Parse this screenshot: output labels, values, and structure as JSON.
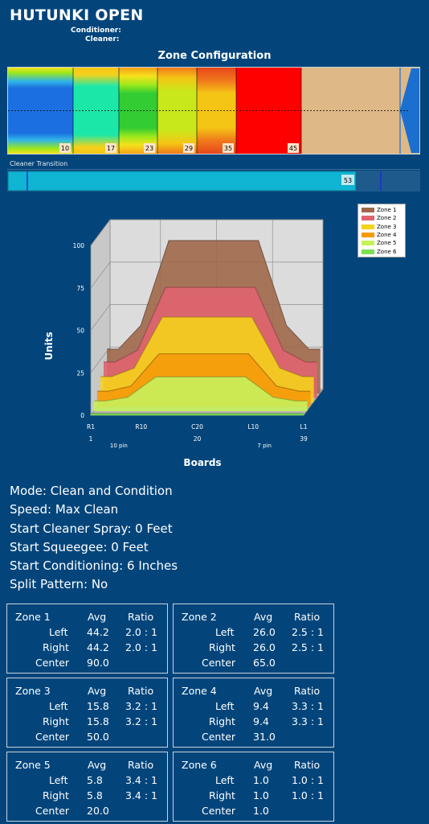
{
  "header": {
    "title": "HUTUNKI OPEN",
    "conditioner_label": "Conditioner:",
    "cleaner_label": "Cleaner:"
  },
  "zone_config": {
    "title": "Zone Configuration",
    "zone_ends": [
      10,
      17,
      23,
      29,
      35,
      45
    ],
    "colors": {
      "z1": "#1b6fe0",
      "z2": "#1be8a8",
      "z3": "#33cc33",
      "z4": "#c8e81b",
      "z5": "#f5c516",
      "z6": "#ff0000",
      "dry": "#deb887",
      "pin_arrow": "#1b6fcf"
    }
  },
  "cleaner_transition": {
    "label": "Cleaner Transition",
    "value": "53",
    "color": "#0fb5d2"
  },
  "chart_data": {
    "type": "area",
    "ylabel": "Units",
    "xlabel": "Boards",
    "ylim": [
      0,
      100
    ],
    "yticks": [
      "0",
      "25",
      "50",
      "75",
      "100"
    ],
    "xticks": [
      "R1",
      "R10",
      "C20",
      "L10",
      "L1"
    ],
    "board_numbers": [
      "1",
      "20",
      "39"
    ],
    "pin_labels": [
      "10 pin",
      "7 pin"
    ],
    "boards": [
      1,
      3,
      7,
      12,
      20,
      28,
      33,
      37,
      39
    ],
    "series": [
      {
        "name": "Zone 1",
        "color": "#a0684a",
        "values": [
          26,
          26,
          40,
          90,
          90,
          90,
          40,
          26,
          26
        ]
      },
      {
        "name": "Zone 2",
        "color": "#e0646e",
        "values": [
          21,
          21,
          28,
          65,
          65,
          65,
          28,
          21,
          21
        ]
      },
      {
        "name": "Zone 3",
        "color": "#f5d21c",
        "values": [
          15,
          15,
          20,
          50,
          50,
          50,
          20,
          15,
          15
        ]
      },
      {
        "name": "Zone 4",
        "color": "#f59a0a",
        "values": [
          9,
          9,
          12,
          31,
          31,
          31,
          12,
          9,
          9
        ]
      },
      {
        "name": "Zone 5",
        "color": "#c8f05a",
        "values": [
          5.8,
          5.8,
          8,
          20,
          20,
          20,
          8,
          5.8,
          5.8
        ]
      },
      {
        "name": "Zone 6",
        "color": "#7ee052",
        "values": [
          1,
          1,
          1,
          1,
          1,
          1,
          1,
          1,
          1
        ]
      }
    ]
  },
  "info": {
    "mode": "Mode: Clean and Condition",
    "speed": "Speed: Max Clean",
    "cleaner_spray": "Start Cleaner Spray: 0 Feet",
    "squeegee": "Start Squeegee: 0 Feet",
    "conditioning": "Start Conditioning: 6 Inches",
    "split": "Split Pattern: No"
  },
  "zone_tables": [
    {
      "zone": "Zone 1",
      "avg_h": "Avg",
      "ratio_h": "Ratio",
      "left_l": "Left",
      "left_avg": "44.2",
      "left_ratio": "2.0 : 1",
      "right_l": "Right",
      "right_avg": "44.2",
      "right_ratio": "2.0 : 1",
      "center_l": "Center",
      "center_avg": "90.0"
    },
    {
      "zone": "Zone 2",
      "avg_h": "Avg",
      "ratio_h": "Ratio",
      "left_l": "Left",
      "left_avg": "26.0",
      "left_ratio": "2.5 : 1",
      "right_l": "Right",
      "right_avg": "26.0",
      "right_ratio": "2.5 : 1",
      "center_l": "Center",
      "center_avg": "65.0"
    },
    {
      "zone": "Zone 3",
      "avg_h": "Avg",
      "ratio_h": "Ratio",
      "left_l": "Left",
      "left_avg": "15.8",
      "left_ratio": "3.2 : 1",
      "right_l": "Right",
      "right_avg": "15.8",
      "right_ratio": "3.2 : 1",
      "center_l": "Center",
      "center_avg": "50.0"
    },
    {
      "zone": "Zone 4",
      "avg_h": "Avg",
      "ratio_h": "Ratio",
      "left_l": "Left",
      "left_avg": "9.4",
      "left_ratio": "3.3 : 1",
      "right_l": "Right",
      "right_avg": "9.4",
      "right_ratio": "3.3 : 1",
      "center_l": "Center",
      "center_avg": "31.0"
    },
    {
      "zone": "Zone 5",
      "avg_h": "Avg",
      "ratio_h": "Ratio",
      "left_l": "Left",
      "left_avg": "5.8",
      "left_ratio": "3.4 : 1",
      "right_l": "Right",
      "right_avg": "5.8",
      "right_ratio": "3.4 : 1",
      "center_l": "Center",
      "center_avg": "20.0"
    },
    {
      "zone": "Zone 6",
      "avg_h": "Avg",
      "ratio_h": "Ratio",
      "left_l": "Left",
      "left_avg": "1.0",
      "left_ratio": "1.0 : 1",
      "right_l": "Right",
      "right_avg": "1.0",
      "right_ratio": "1.0 : 1",
      "center_l": "Center",
      "center_avg": "1.0"
    }
  ]
}
